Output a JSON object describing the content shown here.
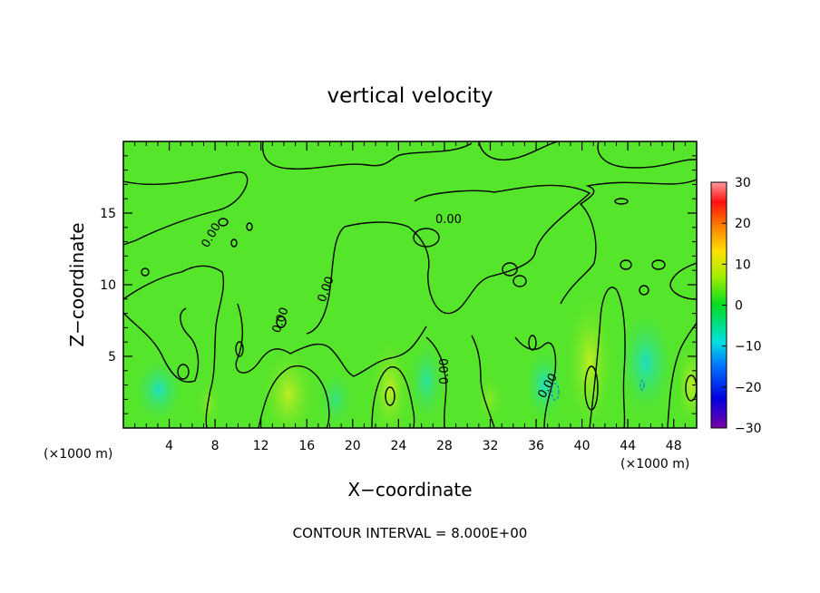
{
  "chart_data": {
    "type": "heatmap",
    "title": "vertical velocity",
    "xlabel": "X−coordinate",
    "ylabel": "Z−coordinate",
    "x_unit_left": "(×1000 m)",
    "x_unit_right": "(×1000 m)",
    "xlim": [
      0,
      50
    ],
    "ylim": [
      0,
      20
    ],
    "x_ticks": [
      4,
      8,
      12,
      16,
      20,
      24,
      28,
      32,
      36,
      40,
      44,
      48
    ],
    "y_ticks": [
      5,
      10,
      15
    ],
    "colorbar": {
      "min": -30,
      "max": 30,
      "ticks": [
        30,
        20,
        10,
        0,
        -10,
        -20,
        -30
      ],
      "tick_labels": [
        "30",
        "20",
        "10",
        "0",
        "−10",
        "−20",
        "−30"
      ]
    },
    "contour_label": "0.00",
    "footer": "CONTOUR INTERVAL = 8.000E+00",
    "field_note": "values mostly near 0 (green); weak updrafts (yellow-green) near x=14, 23, 41 and weak downdrafts (cyan) near x=2, 37, 45 below z=5"
  }
}
